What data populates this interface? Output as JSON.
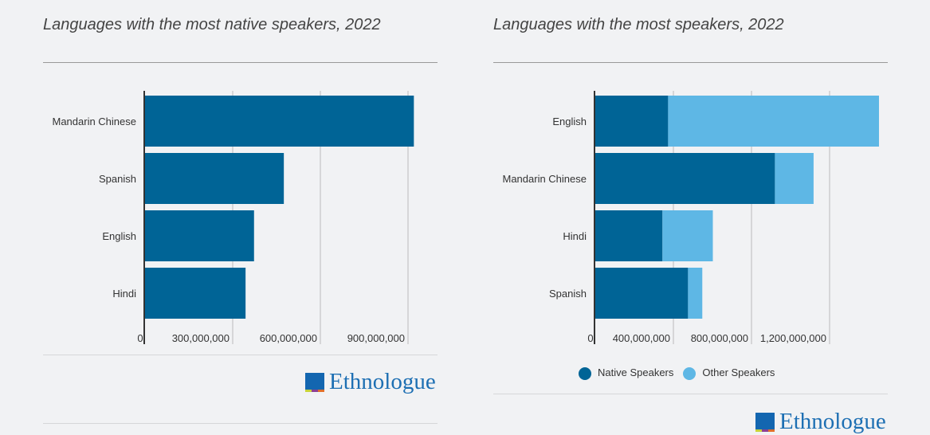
{
  "colors": {
    "native": "#006496",
    "other": "#5eb7e5"
  },
  "logo_text": "Ethnologue",
  "chart_data": [
    {
      "type": "bar",
      "orientation": "horizontal",
      "title": "Languages with the most native speakers, 2022",
      "categories": [
        "Mandarin Chinese",
        "Spanish",
        "English",
        "Hindi"
      ],
      "values": [
        920000000,
        475000000,
        373000000,
        344000000
      ],
      "xlim": [
        0,
        1000000000
      ],
      "ticks": [
        0,
        300000000,
        600000000,
        900000000
      ],
      "tick_labels": [
        "0",
        "300,000,000",
        "600,000,000",
        "900,000,000"
      ],
      "grid": true
    },
    {
      "type": "bar",
      "orientation": "horizontal",
      "stacked": true,
      "title": "Languages with the most speakers, 2022",
      "categories": [
        "English",
        "Mandarin Chinese",
        "Hindi",
        "Spanish"
      ],
      "series": [
        {
          "name": "Native Speakers",
          "values": [
            373000000,
            920000000,
            344000000,
            475000000
          ]
        },
        {
          "name": "Other Speakers",
          "values": [
            1080000000,
            198000000,
            258000000,
            73000000
          ]
        }
      ],
      "xlim": [
        0,
        1500000000
      ],
      "ticks": [
        0,
        400000000,
        800000000,
        1200000000
      ],
      "tick_labels": [
        "0",
        "400,000,000",
        "800,000,000",
        "1,200,000,000"
      ],
      "grid": true,
      "legend": "bottom"
    }
  ]
}
